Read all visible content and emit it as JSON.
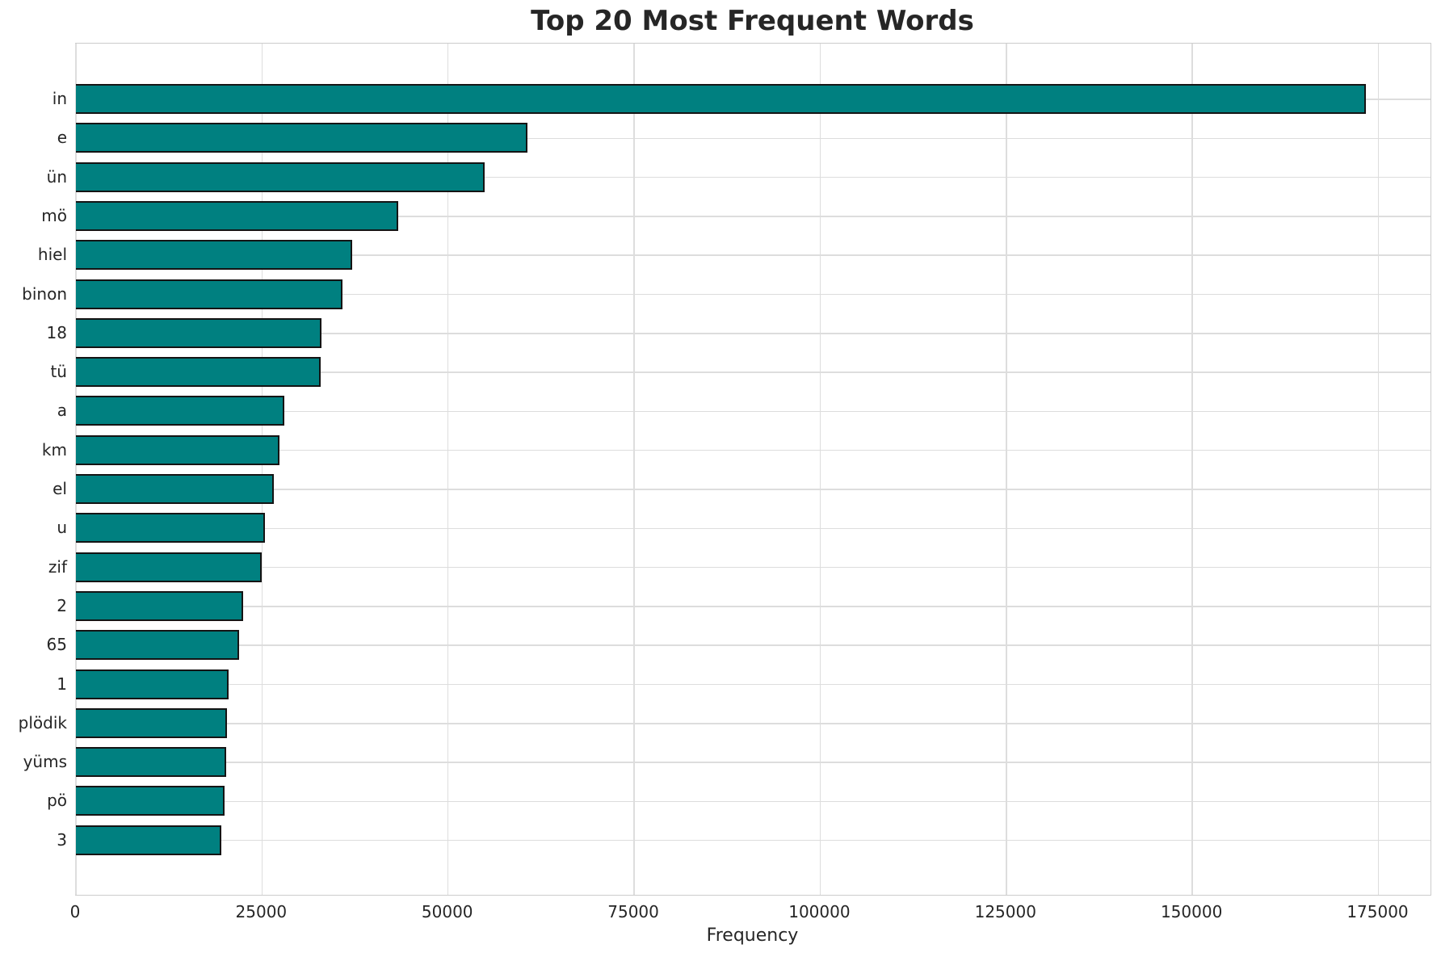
{
  "chart_data": {
    "type": "bar",
    "orientation": "horizontal",
    "title": "Top 20 Most Frequent Words",
    "xlabel": "Frequency",
    "ylabel": "",
    "categories": [
      "in",
      "e",
      "ün",
      "mö",
      "hiel",
      "binon",
      "18",
      "tü",
      "a",
      "km",
      "el",
      "u",
      "zif",
      "2",
      "65",
      "1",
      "plödik",
      "yüms",
      "pö",
      "3"
    ],
    "values": [
      173400,
      60700,
      55000,
      43400,
      37200,
      35900,
      33100,
      32900,
      28100,
      27400,
      26600,
      25500,
      25000,
      22500,
      22000,
      20600,
      20300,
      20250,
      20000,
      19600
    ],
    "xticks": [
      0,
      25000,
      50000,
      75000,
      100000,
      125000,
      150000,
      175000
    ],
    "xtick_labels": [
      "0",
      "25000",
      "50000",
      "75000",
      "100000",
      "125000",
      "150000",
      "175000"
    ],
    "xlim": [
      0,
      182000
    ],
    "grid": true,
    "legend": null,
    "bar_color": "#008080",
    "bar_edge_color": "#141414",
    "grid_color": "#dddddd",
    "text_color": "#262626",
    "background_color": "#ffffff"
  }
}
